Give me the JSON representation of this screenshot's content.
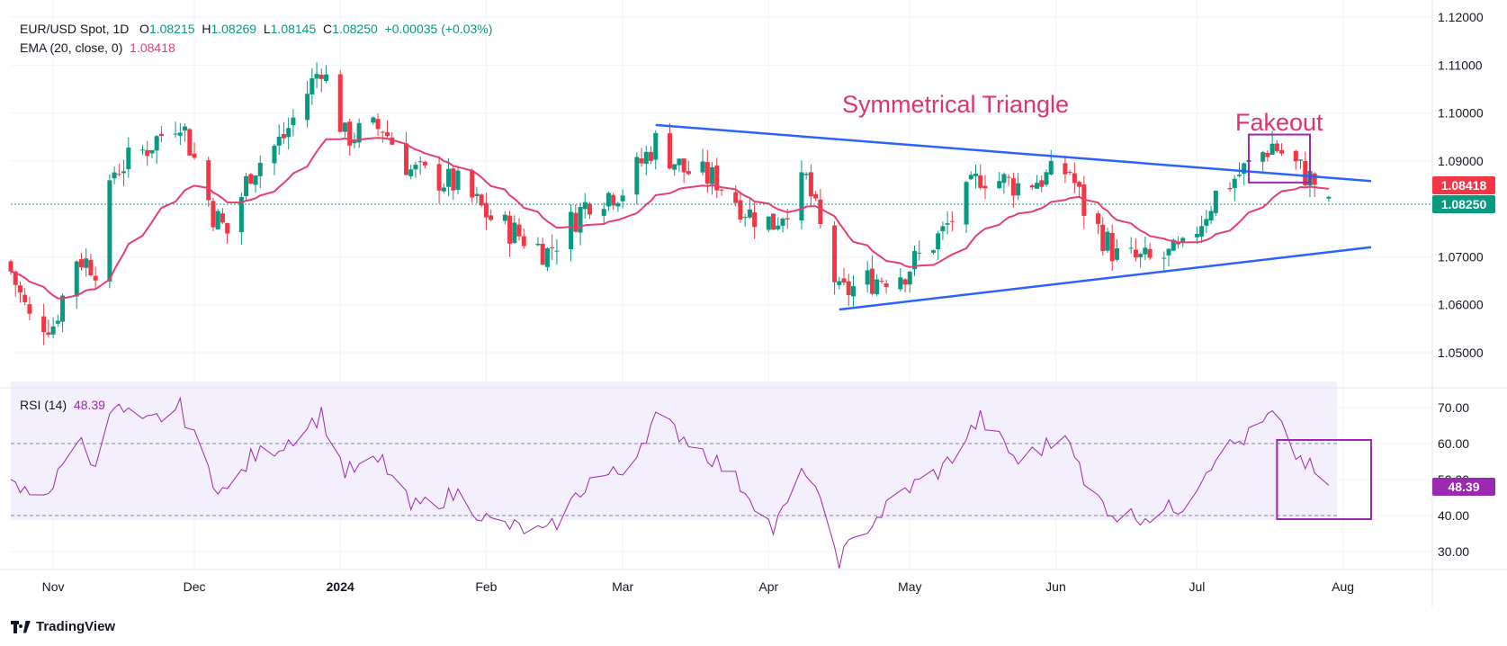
{
  "header": {
    "symbol": "EUR/USD Spot, 1D",
    "open_label": "O",
    "open": "1.08215",
    "high_label": "H",
    "high": "1.08269",
    "low_label": "L",
    "low": "1.08145",
    "close_label": "C",
    "close": "1.08250",
    "change": "+0.00035 (+0.03%)",
    "ema_label": "EMA (20, close, 0)",
    "ema_value": "1.08418",
    "rsi_label": "RSI (14)",
    "rsi_value": "48.39"
  },
  "annotations": {
    "pattern": "Symmetrical Triangle",
    "fakeout": "Fakeout"
  },
  "price_axis": {
    "ticks": [
      "1.12000",
      "1.11000",
      "1.10000",
      "1.09000",
      "1.08000",
      "1.07000",
      "1.06000",
      "1.05000"
    ],
    "ema_badge": "1.08418",
    "close_badge": "1.08250"
  },
  "rsi_axis": {
    "ticks": [
      "70.00",
      "60.00",
      "50.00",
      "40.00",
      "30.00"
    ],
    "badge": "48.39"
  },
  "time_axis": [
    {
      "label": "Nov",
      "bold": false
    },
    {
      "label": "Dec",
      "bold": false
    },
    {
      "label": "2024",
      "bold": true
    },
    {
      "label": "Feb",
      "bold": false
    },
    {
      "label": "Mar",
      "bold": false
    },
    {
      "label": "Apr",
      "bold": false
    },
    {
      "label": "May",
      "bold": false
    },
    {
      "label": "Jun",
      "bold": false
    },
    {
      "label": "Jul",
      "bold": false
    },
    {
      "label": "Aug",
      "bold": false
    }
  ],
  "brand": {
    "name": "TradingView"
  },
  "colors": {
    "up": "#089981",
    "down": "#f23645",
    "ema": "#e83e6d",
    "rsi": "#9c27b0",
    "trendline": "#2962ff",
    "box": "#9c27b0",
    "annotation": "#e0336d"
  },
  "chart_data": [
    {
      "type": "candlestick",
      "title": "EUR/USD Spot, 1D",
      "x_range": [
        "2023-10-23",
        "2024-08-20"
      ],
      "ylim": [
        1.045,
        1.122
      ],
      "guides": {
        "upper_trendline": [
          {
            "date": "2024-03-08",
            "value": 1.0975
          },
          {
            "date": "2024-08-07",
            "value": 1.0858
          }
        ],
        "lower_trendline": [
          {
            "date": "2024-04-16",
            "value": 1.059
          },
          {
            "date": "2024-08-07",
            "value": 1.072
          }
        ],
        "fakeout_box": {
          "dates": [
            "2024-07-12",
            "2024-07-25"
          ],
          "values": [
            1.0855,
            1.0955
          ]
        }
      },
      "anchor_closes": [
        {
          "date": "2023-10-23",
          "close": 1.067
        },
        {
          "date": "2023-10-27",
          "close": 1.057
        },
        {
          "date": "2023-11-01",
          "close": 1.056
        },
        {
          "date": "2023-11-06",
          "close": 1.07
        },
        {
          "date": "2023-11-10",
          "close": 1.068
        },
        {
          "date": "2023-11-14",
          "close": 1.088
        },
        {
          "date": "2023-11-20",
          "close": 1.092
        },
        {
          "date": "2023-11-28",
          "close": 1.099
        },
        {
          "date": "2023-12-05",
          "close": 1.079
        },
        {
          "date": "2023-12-08",
          "close": 1.075
        },
        {
          "date": "2023-12-13",
          "close": 1.088
        },
        {
          "date": "2023-12-20",
          "close": 1.095
        },
        {
          "date": "2023-12-28",
          "close": 1.11
        },
        {
          "date": "2024-01-02",
          "close": 1.095
        },
        {
          "date": "2024-01-10",
          "close": 1.097
        },
        {
          "date": "2024-01-16",
          "close": 1.088
        },
        {
          "date": "2024-01-26",
          "close": 1.085
        },
        {
          "date": "2024-02-02",
          "close": 1.078
        },
        {
          "date": "2024-02-14",
          "close": 1.071
        },
        {
          "date": "2024-02-23",
          "close": 1.082
        },
        {
          "date": "2024-03-01",
          "close": 1.084
        },
        {
          "date": "2024-03-08",
          "close": 1.094
        },
        {
          "date": "2024-03-14",
          "close": 1.088
        },
        {
          "date": "2024-03-21",
          "close": 1.086
        },
        {
          "date": "2024-03-28",
          "close": 1.079
        },
        {
          "date": "2024-04-02",
          "close": 1.077
        },
        {
          "date": "2024-04-09",
          "close": 1.086
        },
        {
          "date": "2024-04-16",
          "close": 1.062
        },
        {
          "date": "2024-04-22",
          "close": 1.065
        },
        {
          "date": "2024-04-30",
          "close": 1.067
        },
        {
          "date": "2024-05-08",
          "close": 1.075
        },
        {
          "date": "2024-05-16",
          "close": 1.087
        },
        {
          "date": "2024-05-24",
          "close": 1.085
        },
        {
          "date": "2024-06-04",
          "close": 1.088
        },
        {
          "date": "2024-06-07",
          "close": 1.08
        },
        {
          "date": "2024-06-14",
          "close": 1.07
        },
        {
          "date": "2024-06-21",
          "close": 1.069
        },
        {
          "date": "2024-06-28",
          "close": 1.071
        },
        {
          "date": "2024-07-05",
          "close": 1.083
        },
        {
          "date": "2024-07-12",
          "close": 1.089
        },
        {
          "date": "2024-07-17",
          "close": 1.0935
        },
        {
          "date": "2024-07-22",
          "close": 1.089
        },
        {
          "date": "2024-07-26",
          "close": 1.0855
        },
        {
          "date": "2024-07-29",
          "close": 1.0825
        }
      ],
      "ema_20": {
        "last_value": 1.08418
      }
    },
    {
      "type": "line",
      "title": "RSI (14)",
      "ylim": [
        25,
        75
      ],
      "reference_lines": [
        60,
        40
      ],
      "guides": {
        "highlight_box": {
          "dates": [
            "2024-07-18",
            "2024-08-07"
          ],
          "values": [
            39,
            61
          ]
        }
      },
      "anchors": [
        {
          "date": "2023-10-23",
          "value": 48
        },
        {
          "date": "2023-10-27",
          "value": 46
        },
        {
          "date": "2023-11-01",
          "value": 48
        },
        {
          "date": "2023-11-06",
          "value": 62
        },
        {
          "date": "2023-11-10",
          "value": 55
        },
        {
          "date": "2023-11-14",
          "value": 70
        },
        {
          "date": "2023-11-20",
          "value": 65
        },
        {
          "date": "2023-11-28",
          "value": 70
        },
        {
          "date": "2023-12-05",
          "value": 50
        },
        {
          "date": "2023-12-08",
          "value": 46
        },
        {
          "date": "2023-12-13",
          "value": 56
        },
        {
          "date": "2023-12-20",
          "value": 60
        },
        {
          "date": "2023-12-28",
          "value": 68
        },
        {
          "date": "2024-01-02",
          "value": 52
        },
        {
          "date": "2024-01-10",
          "value": 55
        },
        {
          "date": "2024-01-16",
          "value": 42
        },
        {
          "date": "2024-01-26",
          "value": 46
        },
        {
          "date": "2024-02-02",
          "value": 38
        },
        {
          "date": "2024-02-14",
          "value": 35
        },
        {
          "date": "2024-02-23",
          "value": 50
        },
        {
          "date": "2024-03-01",
          "value": 52
        },
        {
          "date": "2024-03-08",
          "value": 67
        },
        {
          "date": "2024-03-14",
          "value": 62
        },
        {
          "date": "2024-03-21",
          "value": 55
        },
        {
          "date": "2024-03-28",
          "value": 46
        },
        {
          "date": "2024-04-02",
          "value": 36
        },
        {
          "date": "2024-04-09",
          "value": 53
        },
        {
          "date": "2024-04-16",
          "value": 28
        },
        {
          "date": "2024-04-22",
          "value": 37
        },
        {
          "date": "2024-04-30",
          "value": 47
        },
        {
          "date": "2024-05-08",
          "value": 53
        },
        {
          "date": "2024-05-16",
          "value": 67
        },
        {
          "date": "2024-05-24",
          "value": 55
        },
        {
          "date": "2024-06-04",
          "value": 63
        },
        {
          "date": "2024-06-07",
          "value": 48
        },
        {
          "date": "2024-06-14",
          "value": 40
        },
        {
          "date": "2024-06-21",
          "value": 40
        },
        {
          "date": "2024-06-28",
          "value": 43
        },
        {
          "date": "2024-07-05",
          "value": 57
        },
        {
          "date": "2024-07-12",
          "value": 62
        },
        {
          "date": "2024-07-17",
          "value": 68
        },
        {
          "date": "2024-07-22",
          "value": 57
        },
        {
          "date": "2024-07-26",
          "value": 52
        },
        {
          "date": "2024-07-29",
          "value": 48.39
        }
      ]
    }
  ]
}
